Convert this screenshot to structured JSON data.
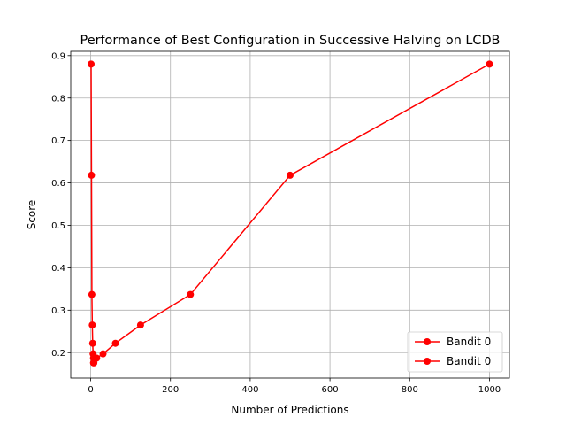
{
  "chart_data": {
    "type": "line",
    "title": "Performance of Best Configuration in Successive Halving on LCDB",
    "xlabel": "Number of Predictions",
    "ylabel": "Score",
    "xlim": [
      -50,
      1050
    ],
    "ylim": [
      0.14,
      0.91
    ],
    "xticks": [
      0,
      200,
      400,
      600,
      800,
      1000
    ],
    "yticks": [
      0.2,
      0.3,
      0.4,
      0.5,
      0.6,
      0.7,
      0.8,
      0.9
    ],
    "xtick_labels": [
      "0",
      "200",
      "400",
      "600",
      "800",
      "1000"
    ],
    "ytick_labels": [
      "0.2",
      "0.3",
      "0.4",
      "0.5",
      "0.6",
      "0.7",
      "0.8",
      "0.9"
    ],
    "grid": true,
    "legend_position": "bottom-right",
    "series": [
      {
        "name": "Bandit 0",
        "color": "#ff0000",
        "x": [
          1,
          2,
          3,
          4,
          5,
          6,
          7,
          8
        ],
        "y": [
          0.88,
          0.618,
          0.337,
          0.265,
          0.222,
          0.197,
          0.187,
          0.176
        ]
      },
      {
        "name": "Bandit 0",
        "color": "#ff0000",
        "x": [
          1000,
          500,
          250,
          125,
          62,
          31,
          15,
          7
        ],
        "y": [
          0.88,
          0.618,
          0.337,
          0.265,
          0.222,
          0.197,
          0.187,
          0.176
        ]
      }
    ]
  }
}
